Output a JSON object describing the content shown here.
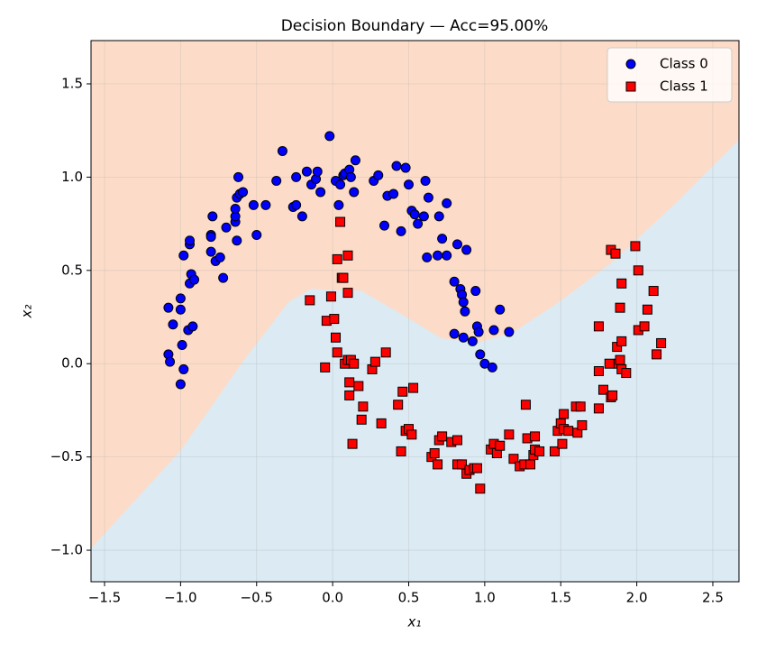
{
  "chart_data": {
    "type": "scatter",
    "title": "Decision Boundary — Acc=95.00%",
    "x_label": "x₁",
    "y_label": "x₂",
    "xlim": [
      -1.589,
      2.672
    ],
    "ylim": [
      -1.169,
      1.732
    ],
    "xticks": [
      {
        "value": -1.5,
        "label": "−1.5"
      },
      {
        "value": -1.0,
        "label": "−1.0"
      },
      {
        "value": -0.5,
        "label": "−0.5"
      },
      {
        "value": 0,
        "label": "0.0"
      },
      0.5,
      {
        "value": 1.0,
        "label": "1.0"
      },
      1.5,
      {
        "value": 2.0,
        "label": "2.0"
      },
      2.5
    ],
    "yticks": [
      {
        "value": -1.0,
        "label": "−1.0"
      },
      {
        "value": -0.5,
        "label": "−0.5"
      },
      {
        "value": 0,
        "label": "0.0"
      },
      0.5,
      {
        "value": 1.0,
        "label": "1.0"
      },
      1.5
    ],
    "grid": true,
    "legend": "upper right",
    "regions": {
      "upper_color": "#fcdcc8",
      "lower_color": "#dbeaf3"
    },
    "boundary": {
      "x": [
        -1.589,
        -1.002,
        -0.587,
        -0.291,
        -0.143,
        0.005,
        0.183,
        0.42,
        0.716,
        0.953,
        1.19,
        1.487,
        1.842,
        2.257,
        2.672
      ],
      "y": [
        -0.99,
        -0.468,
        0.016,
        0.33,
        0.402,
        0.393,
        0.393,
        0.281,
        0.136,
        0.112,
        0.17,
        0.33,
        0.547,
        0.862,
        1.2
      ]
    },
    "series": [
      {
        "name": "Class 0",
        "color": "#0000ff",
        "marker": "circle",
        "x": [
          -1.08,
          -1.07,
          -1.0,
          -0.98,
          -0.99,
          -1.05,
          -1.08,
          -1.0,
          -1.0,
          -0.95,
          -0.92,
          -0.94,
          -0.93,
          -0.91,
          -0.98,
          -0.94,
          -0.94,
          -0.8,
          -0.77,
          -0.74,
          -0.72,
          -0.8,
          -0.8,
          -0.79,
          -0.7,
          -0.63,
          -0.64,
          -0.64,
          -0.64,
          -0.63,
          -0.61,
          -0.59,
          -0.62,
          -0.5,
          -0.52,
          -0.44,
          -0.37,
          -0.33,
          -0.26,
          -0.24,
          -0.24,
          -0.2,
          -0.17,
          -0.14,
          -0.11,
          -0.1,
          -0.08,
          -0.02,
          0.02,
          0.04,
          0.05,
          0.07,
          0.08,
          0.11,
          0.12,
          0.14,
          0.15,
          0.27,
          0.3,
          0.34,
          0.36,
          0.4,
          0.42,
          0.45,
          0.48,
          0.5,
          0.52,
          0.54,
          0.56,
          0.61,
          0.6,
          0.63,
          0.62,
          0.7,
          0.69,
          0.72,
          0.75,
          0.75,
          0.8,
          0.82,
          0.8,
          0.84,
          0.85,
          0.86,
          0.87,
          0.86,
          0.88,
          0.92,
          0.94,
          0.95,
          0.96,
          0.97,
          1.0,
          1.05,
          1.06,
          1.1,
          1.16
        ],
        "y": [
          0.05,
          0.01,
          -0.11,
          -0.03,
          0.1,
          0.21,
          0.3,
          0.29,
          0.35,
          0.18,
          0.2,
          0.43,
          0.48,
          0.45,
          0.58,
          0.64,
          0.66,
          0.6,
          0.55,
          0.57,
          0.46,
          0.69,
          0.68,
          0.79,
          0.73,
          0.66,
          0.76,
          0.79,
          0.83,
          0.89,
          0.91,
          0.92,
          1.0,
          0.69,
          0.85,
          0.85,
          0.98,
          1.14,
          0.84,
          0.85,
          1.0,
          0.79,
          1.03,
          0.96,
          0.99,
          1.03,
          0.92,
          1.22,
          0.98,
          0.85,
          0.96,
          1.01,
          1.02,
          1.04,
          1.0,
          0.92,
          1.09,
          0.98,
          1.01,
          0.74,
          0.9,
          0.91,
          1.06,
          0.71,
          1.05,
          0.96,
          0.82,
          0.8,
          0.75,
          0.98,
          0.79,
          0.89,
          0.57,
          0.79,
          0.58,
          0.67,
          0.86,
          0.58,
          0.44,
          0.64,
          0.16,
          0.4,
          0.37,
          0.33,
          0.28,
          0.14,
          0.61,
          0.12,
          0.39,
          0.2,
          0.17,
          0.05,
          0.0,
          -0.02,
          0.18,
          0.29,
          0.17
        ]
      },
      {
        "name": "Class 1",
        "color": "#ff0000",
        "marker": "square",
        "x": [
          -0.15,
          -0.05,
          -0.04,
          -0.01,
          0.01,
          0.02,
          0.03,
          0.03,
          0.05,
          0.06,
          0.07,
          0.08,
          0.1,
          0.1,
          0.1,
          0.11,
          0.11,
          0.12,
          0.13,
          0.14,
          0.17,
          0.19,
          0.2,
          0.26,
          0.28,
          0.32,
          0.35,
          0.43,
          0.45,
          0.46,
          0.48,
          0.5,
          0.52,
          0.53,
          0.65,
          0.67,
          0.69,
          0.7,
          0.72,
          0.78,
          0.82,
          0.82,
          0.85,
          0.88,
          0.9,
          0.93,
          0.95,
          0.97,
          1.04,
          1.06,
          1.08,
          1.1,
          1.16,
          1.19,
          1.23,
          1.26,
          1.27,
          1.28,
          1.3,
          1.32,
          1.33,
          1.33,
          1.36,
          1.46,
          1.48,
          1.51,
          1.5,
          1.52,
          1.52,
          1.55,
          1.6,
          1.61,
          1.63,
          1.64,
          1.75,
          1.75,
          1.75,
          1.78,
          1.82,
          1.83,
          1.83,
          1.84,
          1.86,
          1.87,
          1.88,
          1.89,
          1.89,
          1.9,
          1.9,
          1.9,
          1.93,
          1.99,
          2.01,
          2.01,
          2.05,
          2.07,
          2.11,
          2.13,
          2.16
        ],
        "y": [
          0.34,
          -0.02,
          0.23,
          0.36,
          0.24,
          0.14,
          0.56,
          0.06,
          0.76,
          0.46,
          0.46,
          0.0,
          0.58,
          0.38,
          0.02,
          -0.17,
          -0.1,
          0.02,
          -0.43,
          0.0,
          -0.12,
          -0.3,
          -0.23,
          -0.03,
          0.01,
          -0.32,
          0.06,
          -0.22,
          -0.47,
          -0.15,
          -0.36,
          -0.35,
          -0.38,
          -0.13,
          -0.5,
          -0.48,
          -0.54,
          -0.41,
          -0.39,
          -0.42,
          -0.41,
          -0.54,
          -0.54,
          -0.59,
          -0.57,
          -0.56,
          -0.56,
          -0.67,
          -0.46,
          -0.43,
          -0.48,
          -0.44,
          -0.38,
          -0.51,
          -0.55,
          -0.54,
          -0.22,
          -0.4,
          -0.54,
          -0.49,
          -0.46,
          -0.39,
          -0.47,
          -0.47,
          -0.36,
          -0.43,
          -0.32,
          -0.35,
          -0.27,
          -0.36,
          -0.23,
          -0.37,
          -0.23,
          -0.33,
          0.2,
          -0.04,
          -0.24,
          -0.14,
          0.0,
          0.61,
          -0.18,
          -0.17,
          0.59,
          0.09,
          0.0,
          0.02,
          0.3,
          0.43,
          0.12,
          -0.03,
          -0.05,
          0.63,
          0.5,
          0.18,
          0.2,
          0.29,
          0.39,
          0.05,
          0.11
        ]
      }
    ]
  }
}
